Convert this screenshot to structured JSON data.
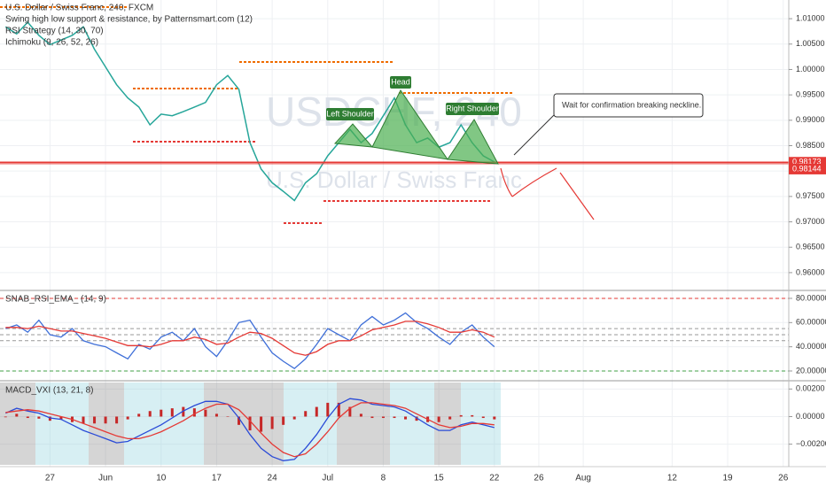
{
  "chart_data": [
    {
      "type": "line",
      "title": "U.S. Dollar / Swiss Franc, 240, FXCM",
      "indicators": [
        "Swing high low support & resistance, by Patternsmart.com (12)",
        "RSI Strategy (14, 30, 70)",
        "Ichimoku (9, 26, 52, 26)"
      ],
      "watermark": [
        "USDCHF, 240",
        "U.S. Dollar / Swiss Franc"
      ],
      "annotations": [
        "Left Shoulder",
        "Head",
        "Right Shoulder",
        "Wait for confirmation breaking neckline."
      ],
      "x": [
        -4,
        -3,
        -2,
        -1,
        0,
        1,
        2,
        3,
        4,
        5,
        6,
        7,
        8,
        9,
        10,
        11,
        12,
        13,
        14,
        15,
        16,
        17,
        18,
        19,
        20,
        21,
        22,
        23,
        24,
        25,
        26,
        27,
        28,
        29,
        30,
        31,
        32,
        33,
        34,
        35,
        36,
        37,
        38,
        39,
        40
      ],
      "values": [
        1.0084,
        1.007,
        1.0093,
        1.0067,
        1.0049,
        1.0058,
        1.0067,
        1.0084,
        1.004,
        1.0005,
        0.997,
        0.9944,
        0.9926,
        0.9891,
        0.9912,
        0.9909,
        0.9917,
        0.9926,
        0.9935,
        0.997,
        0.9988,
        0.9961,
        0.9856,
        0.9804,
        0.9777,
        0.976,
        0.9742,
        0.9777,
        0.9795,
        0.983,
        0.9856,
        0.9882,
        0.9856,
        0.9874,
        0.9909,
        0.9944,
        0.9891,
        0.9856,
        0.9865,
        0.9847,
        0.9856,
        0.9891,
        0.9856,
        0.983,
        0.9818
      ],
      "color": "#26a69a",
      "price_lines": [
        {
          "value": 0.98173,
          "label": "0.98173"
        },
        {
          "value": 0.98144,
          "label": "0.98144"
        }
      ],
      "price_line_color": "#e53935",
      "xlim": [
        -4.5,
        66.5
      ],
      "ylim": [
        0.95667,
        1.01368
      ],
      "yticks": [
        {
          "value": 1.01,
          "label": "1.01000"
        },
        {
          "value": 1.005,
          "label": "1.00500"
        },
        {
          "value": 1.0,
          "label": "1.00000"
        },
        {
          "value": 0.995,
          "label": "0.99500"
        },
        {
          "value": 0.99,
          "label": "0.99000"
        },
        {
          "value": 0.985,
          "label": "0.98500"
        },
        {
          "value": 0.98,
          "label": "0.98000"
        },
        {
          "value": 0.975,
          "label": "0.97500"
        },
        {
          "value": 0.97,
          "label": "0.97000"
        },
        {
          "value": 0.965,
          "label": "0.96500"
        },
        {
          "value": 0.96,
          "label": "0.96000"
        }
      ],
      "grid": true
    },
    {
      "type": "line",
      "title": "SNAB_RSI_EMA_ (14, 9)",
      "x": [
        -4,
        -3,
        -2,
        -1,
        0,
        1,
        2,
        3,
        4,
        5,
        6,
        7,
        8,
        9,
        10,
        11,
        12,
        13,
        14,
        15,
        16,
        17,
        18,
        19,
        20,
        21,
        22,
        23,
        24,
        25,
        26,
        27,
        28,
        29,
        30,
        31,
        32,
        33,
        34,
        35,
        36,
        37,
        38,
        39,
        40
      ],
      "series": [
        {
          "color": "#3f6fd8",
          "values": [
            55,
            58,
            52,
            62,
            50,
            48,
            55,
            45,
            42,
            40,
            35,
            30,
            42,
            38,
            48,
            52,
            45,
            55,
            40,
            32,
            45,
            60,
            62,
            48,
            35,
            28,
            22,
            30,
            42,
            55,
            50,
            45,
            58,
            65,
            58,
            62,
            68,
            60,
            55,
            48,
            42,
            52,
            58,
            48,
            40
          ]
        },
        {
          "color": "#e53935",
          "values": [
            56,
            56,
            55,
            57,
            55,
            53,
            53,
            51,
            49,
            47,
            44,
            41,
            41,
            40,
            42,
            45,
            45,
            48,
            46,
            42,
            43,
            48,
            52,
            51,
            47,
            41,
            35,
            33,
            36,
            42,
            45,
            45,
            49,
            54,
            56,
            58,
            61,
            61,
            59,
            56,
            52,
            52,
            54,
            52,
            48
          ]
        }
      ],
      "levels": [
        80,
        55,
        50,
        45,
        20
      ],
      "level_colors": [
        "#e53935",
        "#999999",
        "#999999",
        "#999999",
        "#43a047"
      ],
      "xlim": [
        -4.5,
        66.5
      ],
      "ylim": [
        13.4,
        85.1
      ],
      "yticks": [
        {
          "value": 80,
          "label": "80.00000"
        },
        {
          "value": 60,
          "label": "60.00000"
        },
        {
          "value": 40,
          "label": "40.00000"
        },
        {
          "value": 20,
          "label": "20.00000"
        }
      ],
      "grid": true
    },
    {
      "type": "line",
      "title": "MACD_VXI (13, 21, 8)",
      "x": [
        -4,
        -3,
        -2,
        -1,
        0,
        1,
        2,
        3,
        4,
        5,
        6,
        7,
        8,
        9,
        10,
        11,
        12,
        13,
        14,
        15,
        16,
        17,
        18,
        19,
        20,
        21,
        22,
        23,
        24,
        25,
        26,
        27,
        28,
        29,
        30,
        31,
        32,
        33,
        34,
        35,
        36,
        37,
        38,
        39,
        40
      ],
      "series": [
        {
          "color": "#2a4bd7",
          "values": [
            0.00025,
            0.0006,
            0.0004,
            0.00025,
            -0.0001,
            -0.0002,
            -0.0006,
            -0.001,
            -0.0013,
            -0.0016,
            -0.0019,
            -0.0018,
            -0.0014,
            -0.001,
            -0.0006,
            -0.0001,
            0.0004,
            0.0008,
            0.0011,
            0.0011,
            0.0009,
            -0.0001,
            -0.0013,
            -0.0023,
            -0.0029,
            -0.0032,
            -0.0031,
            -0.0023,
            -0.0013,
            -0.0001,
            0.0009,
            0.0013,
            0.0012,
            0.0009,
            0.0008,
            0.0007,
            0.0004,
            -0.0001,
            -0.0006,
            -0.001,
            -0.001,
            -0.0006,
            -0.0004,
            -0.0006,
            -0.0008
          ]
        },
        {
          "color": "#e53935",
          "values": [
            0.0003,
            0.0004,
            0.0005,
            0.0004,
            0.0002,
            0.0,
            -0.0002,
            -0.0005,
            -0.0008,
            -0.0011,
            -0.0014,
            -0.0016,
            -0.0016,
            -0.0014,
            -0.0011,
            -0.0007,
            -0.0003,
            0.0002,
            0.0006,
            0.0009,
            0.0009,
            0.0005,
            -0.0003,
            -0.0012,
            -0.002,
            -0.0026,
            -0.0029,
            -0.0027,
            -0.002,
            -0.0011,
            -0.0001,
            0.0006,
            0.001,
            0.001,
            0.0009,
            0.0008,
            0.0006,
            0.0002,
            -0.0002,
            -0.0006,
            -0.0008,
            -0.0007,
            -0.0005,
            -0.0005,
            -0.0006
          ]
        }
      ],
      "histogram": [
        -5e-05,
        0.0002,
        -0.0001,
        -0.00015,
        -0.0003,
        -0.0002,
        -0.0004,
        -0.0005,
        -0.0005,
        -0.0005,
        -0.0005,
        -0.0002,
        0.0002,
        0.0004,
        0.0005,
        0.0006,
        0.0007,
        0.0006,
        0.0005,
        0.0002,
        0,
        -0.0006,
        -0.001,
        -0.0011,
        -0.0009,
        -0.0006,
        -0.0002,
        0.0004,
        0.0007,
        0.001,
        0.001,
        0.0007,
        0.0002,
        -0.0001,
        -0.0001,
        -0.0001,
        -0.0002,
        -0.0003,
        -0.0004,
        -0.0004,
        -0.0002,
        0.0001,
        0.0001,
        -0.0001,
        -0.0002
      ],
      "histogram_color": "#c62828",
      "xlim": [
        -4.5,
        66.5
      ],
      "ylim": [
        -0.0035,
        0.00247
      ],
      "yticks": [
        {
          "value": 0.002,
          "label": "0.00200"
        },
        {
          "value": 0,
          "label": "0.00000"
        },
        {
          "value": -0.002,
          "label": "−0.00200"
        }
      ],
      "xticks": [
        {
          "value": 0,
          "label": "27"
        },
        {
          "value": 5,
          "label": "Jun"
        },
        {
          "value": 10,
          "label": "10"
        },
        {
          "value": 15,
          "label": "17"
        },
        {
          "value": 20,
          "label": "24"
        },
        {
          "value": 25,
          "label": "Jul"
        },
        {
          "value": 30,
          "label": "8"
        },
        {
          "value": 35,
          "label": "15"
        },
        {
          "value": 40,
          "label": "22"
        },
        {
          "value": 44,
          "label": "26"
        },
        {
          "value": 48,
          "label": "Aug"
        },
        {
          "value": 56,
          "label": "12"
        },
        {
          "value": 61,
          "label": "19"
        },
        {
          "value": 66,
          "label": "26"
        }
      ],
      "grid": true
    }
  ]
}
